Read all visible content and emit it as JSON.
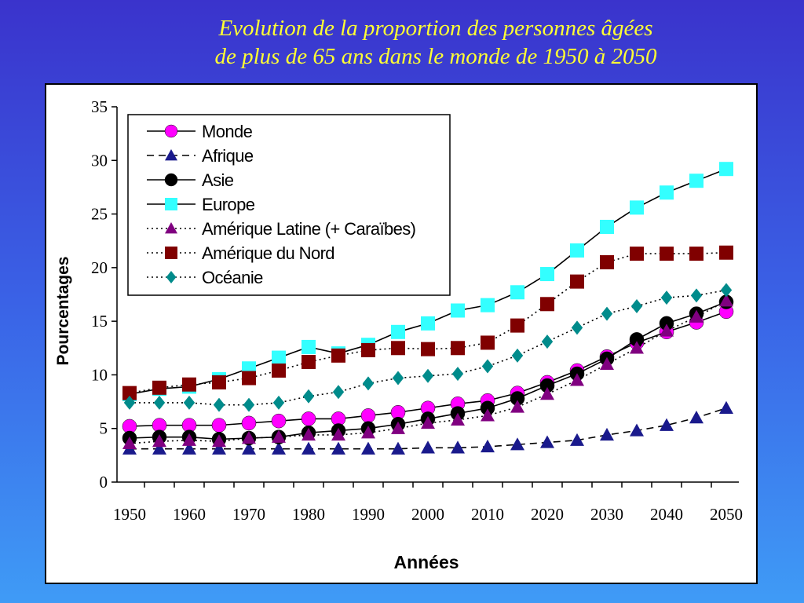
{
  "title": "Evolution  de la proportion des personnes âgées\nde plus de 65 ans dans le monde de 1950 à 2050",
  "chart_data": {
    "type": "line",
    "title": "Evolution  de la proportion des personnes âgées de plus de 65 ans dans le monde de 1950 à 2050",
    "xlabel": "Années",
    "ylabel": "Pourcentages",
    "xlim": [
      1950,
      2050
    ],
    "ylim": [
      0,
      35
    ],
    "x": [
      1950,
      1955,
      1960,
      1965,
      1970,
      1975,
      1980,
      1985,
      1990,
      1995,
      2000,
      2005,
      2010,
      2015,
      2020,
      2025,
      2030,
      2035,
      2040,
      2045,
      2050
    ],
    "x_ticks": [
      "1950",
      "1960",
      "1970",
      "1980",
      "1990",
      "2000",
      "2010",
      "2020",
      "2030",
      "2040",
      "2050"
    ],
    "y_ticks": [
      "0",
      "5",
      "10",
      "15",
      "20",
      "25",
      "30",
      "35"
    ],
    "grid": false,
    "legend": "top-left",
    "series": [
      {
        "name": "Monde",
        "marker": "circle",
        "color": "#ff00ff",
        "line": "solid",
        "values": [
          5.2,
          5.3,
          5.3,
          5.3,
          5.5,
          5.7,
          5.9,
          5.9,
          6.2,
          6.5,
          6.9,
          7.3,
          7.6,
          8.3,
          9.3,
          10.4,
          11.7,
          13.0,
          14.0,
          14.9,
          15.9
        ]
      },
      {
        "name": "Afrique",
        "marker": "triangle",
        "color": "#1a1a8c",
        "line": "dashed",
        "values": [
          3.1,
          3.1,
          3.1,
          3.1,
          3.1,
          3.1,
          3.1,
          3.1,
          3.1,
          3.1,
          3.2,
          3.2,
          3.3,
          3.5,
          3.7,
          3.9,
          4.4,
          4.8,
          5.3,
          6.0,
          6.9
        ]
      },
      {
        "name": "Asie",
        "marker": "circle",
        "color": "#000000",
        "line": "solid",
        "values": [
          4.1,
          4.2,
          4.2,
          4.0,
          4.1,
          4.2,
          4.6,
          4.8,
          5.0,
          5.4,
          5.9,
          6.4,
          6.9,
          7.8,
          9.0,
          10.1,
          11.5,
          13.3,
          14.8,
          15.7,
          16.8
        ]
      },
      {
        "name": "Europe",
        "marker": "square",
        "color": "#33ffff",
        "line": "solid",
        "values": [
          8.2,
          8.7,
          8.9,
          9.6,
          10.6,
          11.6,
          12.6,
          12.0,
          12.8,
          14.0,
          14.8,
          16.0,
          16.5,
          17.7,
          19.4,
          21.6,
          23.8,
          25.6,
          27.0,
          28.1,
          29.2
        ]
      },
      {
        "name": "Amérique Latine (+ Caraïbes)",
        "marker": "triangle",
        "color": "#800080",
        "line": "dotted",
        "values": [
          3.6,
          3.8,
          3.9,
          3.8,
          4.1,
          4.2,
          4.4,
          4.4,
          4.6,
          5.0,
          5.5,
          5.8,
          6.2,
          7.0,
          8.2,
          9.5,
          11.0,
          12.5,
          14.1,
          15.4,
          16.9
        ]
      },
      {
        "name": "Amérique du Nord",
        "marker": "square",
        "color": "#800000",
        "line": "dotted",
        "values": [
          8.3,
          8.8,
          9.1,
          9.3,
          9.7,
          10.4,
          11.2,
          11.8,
          12.3,
          12.5,
          12.4,
          12.5,
          13.0,
          14.6,
          16.6,
          18.7,
          20.5,
          21.3,
          21.3,
          21.3,
          21.4
        ]
      },
      {
        "name": "Océanie",
        "marker": "diamond",
        "color": "#008b8b",
        "line": "dotted",
        "values": [
          7.4,
          7.4,
          7.4,
          7.2,
          7.2,
          7.4,
          8.0,
          8.4,
          9.2,
          9.7,
          9.9,
          10.1,
          10.8,
          11.8,
          13.1,
          14.4,
          15.7,
          16.4,
          17.2,
          17.4,
          17.9
        ]
      }
    ]
  }
}
